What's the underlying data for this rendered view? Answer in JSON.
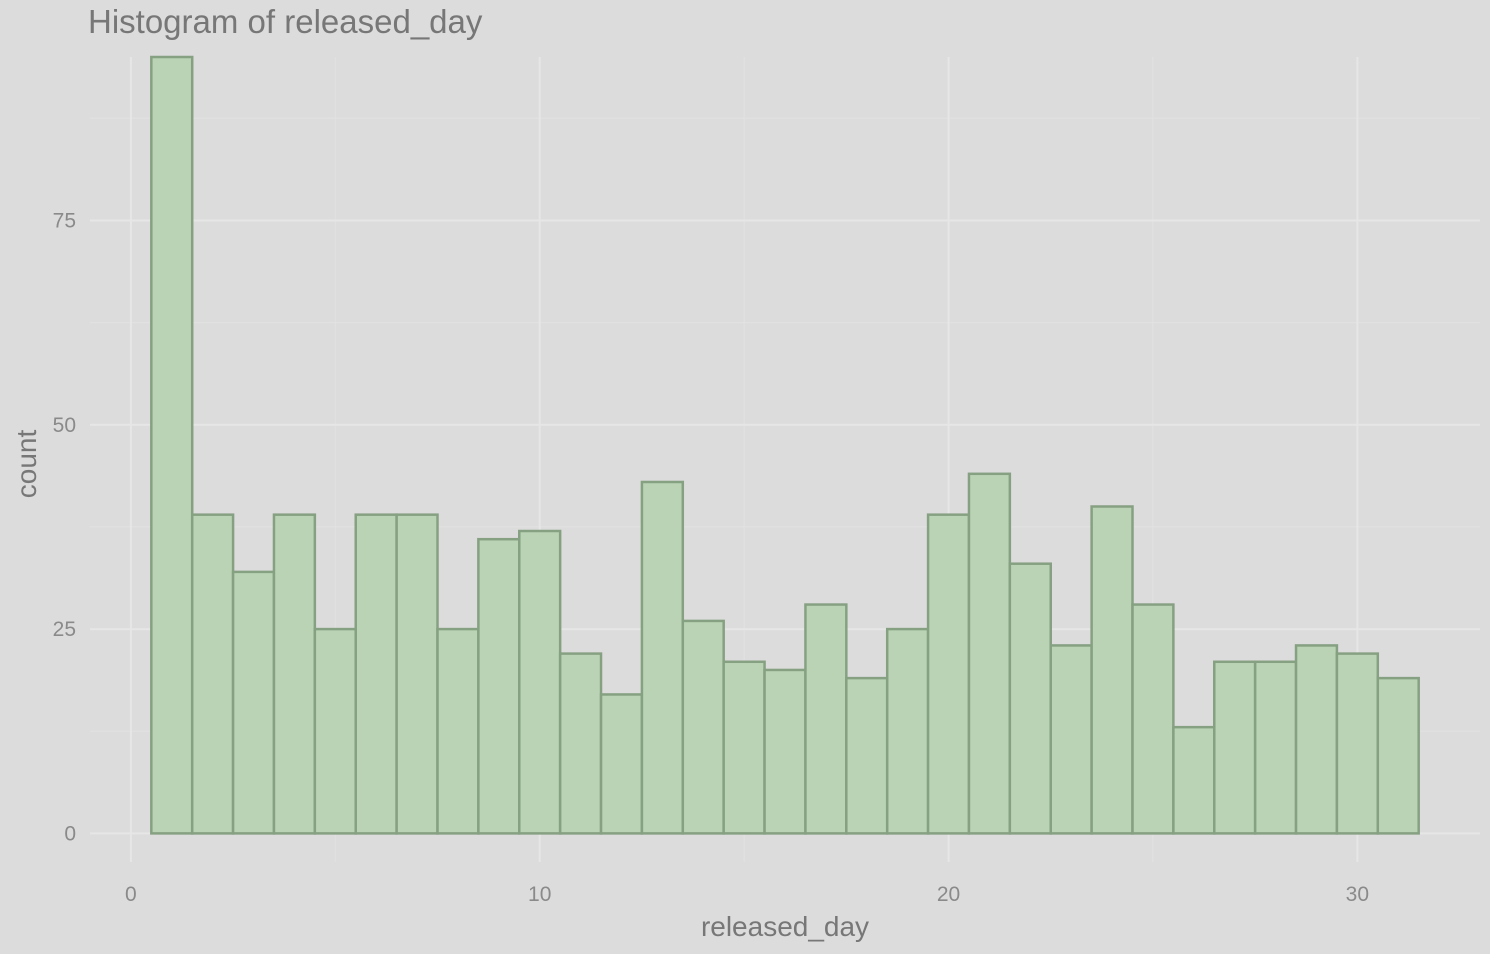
{
  "chart_data": {
    "type": "bar",
    "subtype": "histogram",
    "title": "Histogram of released_day",
    "xlabel": "released_day",
    "ylabel": "count",
    "xlim": [
      -1,
      33
    ],
    "ylim": [
      -3.5,
      95
    ],
    "x_ticks": [
      0,
      10,
      20,
      30
    ],
    "x_minor_ticks": [
      5,
      15,
      25
    ],
    "y_ticks": [
      0,
      25,
      50,
      75
    ],
    "y_minor_ticks": [
      12.5,
      37.5,
      62.5,
      87.5
    ],
    "bin_width": 1,
    "bins": [
      1,
      2,
      3,
      4,
      5,
      6,
      7,
      8,
      9,
      10,
      11,
      12,
      13,
      14,
      15,
      16,
      17,
      18,
      19,
      20,
      21,
      22,
      23,
      24,
      25,
      26,
      27,
      28,
      29,
      30,
      31
    ],
    "values": [
      95,
      39,
      32,
      39,
      25,
      39,
      39,
      25,
      36,
      37,
      22,
      17,
      43,
      26,
      21,
      20,
      28,
      19,
      25,
      39,
      44,
      33,
      23,
      40,
      28,
      13,
      21,
      21,
      23,
      22,
      19
    ],
    "grid": true,
    "legend": "none",
    "colors": {
      "background": "#dcdcdc",
      "bar_fill": "#b9d3b4",
      "bar_stroke": "#86a082"
    }
  }
}
